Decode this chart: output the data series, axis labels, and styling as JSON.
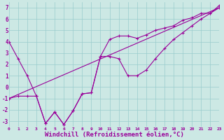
{
  "background_color": "#cce8e4",
  "grid_color": "#99cccc",
  "line_color": "#990099",
  "xlabel": "Windchill (Refroidissement éolien,°C)",
  "xlim": [
    0,
    23
  ],
  "ylim": [
    -3.5,
    7.5
  ],
  "yticks": [
    -3,
    -2,
    -1,
    0,
    1,
    2,
    3,
    4,
    5,
    6,
    7
  ],
  "xticks": [
    0,
    1,
    2,
    3,
    4,
    5,
    6,
    7,
    8,
    9,
    10,
    11,
    12,
    13,
    14,
    15,
    16,
    17,
    18,
    19,
    20,
    21,
    22,
    23
  ],
  "line1_x": [
    0,
    1,
    2,
    3,
    4,
    5,
    6,
    7,
    8,
    9,
    10,
    11,
    12,
    13,
    14,
    15,
    16,
    17,
    18,
    19,
    20,
    21,
    22,
    23
  ],
  "line1_y": [
    4.0,
    2.5,
    1.0,
    -0.8,
    -3.2,
    -2.2,
    -3.3,
    -2.1,
    -0.6,
    -0.5,
    2.7,
    4.2,
    4.5,
    4.5,
    4.3,
    4.6,
    5.0,
    5.2,
    5.4,
    5.9,
    6.1,
    6.5,
    6.5,
    7.2
  ],
  "line2_x": [
    0,
    1,
    2,
    3,
    4,
    5,
    6,
    7,
    8,
    9,
    10,
    11,
    12,
    13,
    14,
    15,
    16,
    17,
    18,
    19,
    20,
    21,
    22,
    23
  ],
  "line2_y": [
    -1.0,
    -0.8,
    -0.8,
    -0.8,
    -3.2,
    -2.2,
    -3.3,
    -2.1,
    -0.6,
    -0.5,
    2.7,
    2.7,
    2.5,
    1.0,
    1.0,
    1.5,
    2.5,
    3.4,
    4.2,
    4.8,
    5.4,
    6.0,
    6.5,
    7.0
  ],
  "line3_x": [
    0,
    23
  ],
  "line3_y": [
    -1.0,
    7.0
  ]
}
